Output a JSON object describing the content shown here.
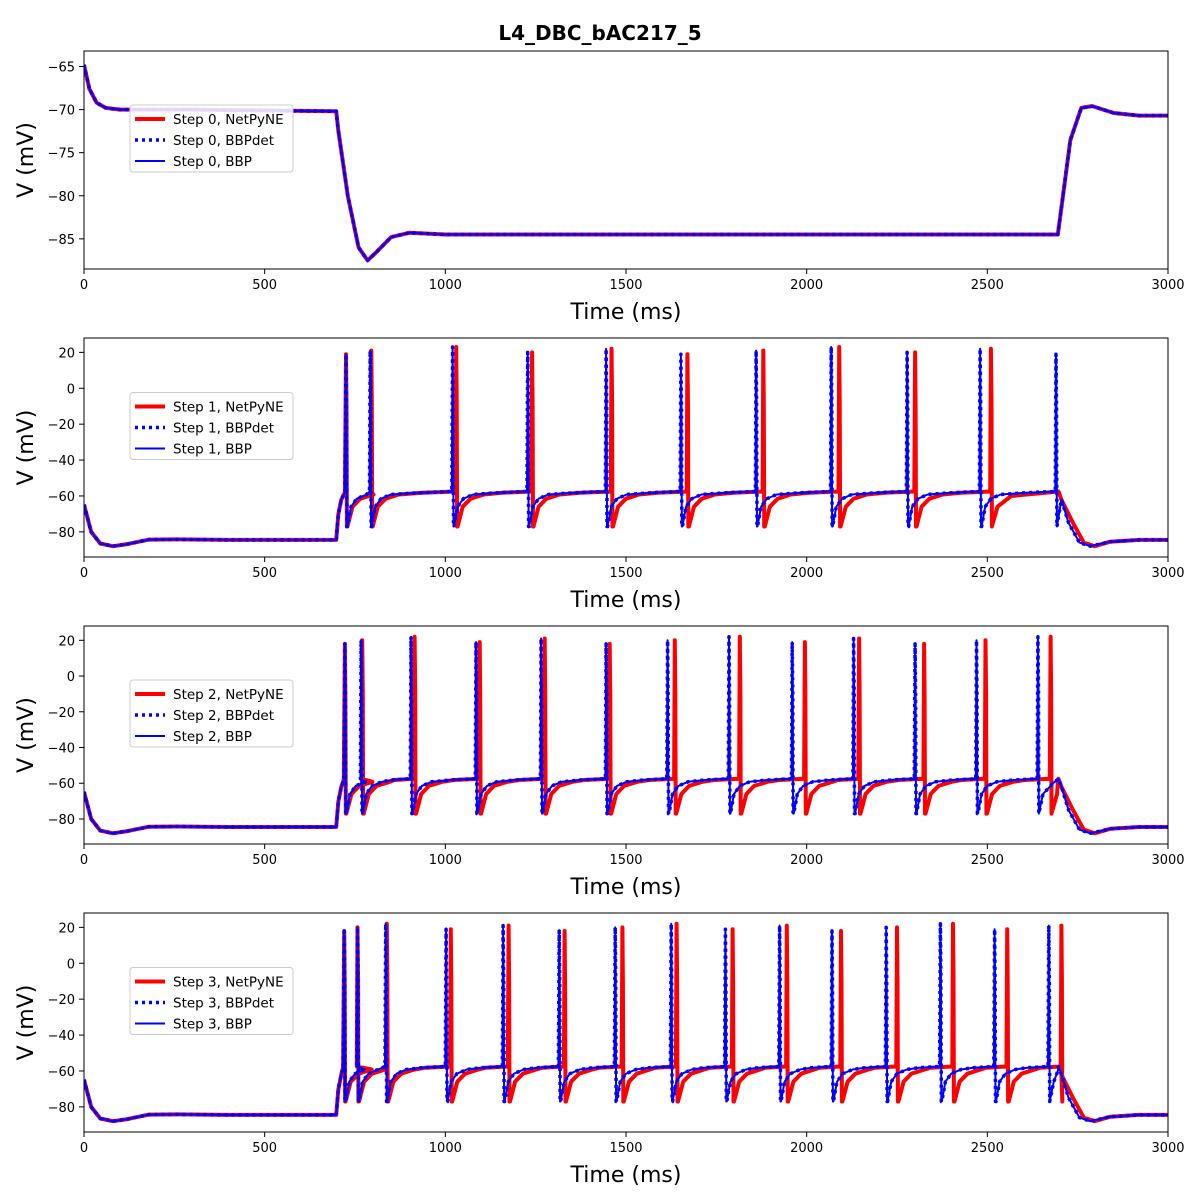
{
  "figure": {
    "title": "L4_DBC_bAC217_5"
  },
  "colors": {
    "netpyne": "#ff0000",
    "bbp": "#0000ff",
    "axes": "#000000",
    "legend_border": "#cccccc"
  },
  "chart_data": [
    {
      "type": "line",
      "step": 0,
      "title": "L4_DBC_bAC217_5",
      "xlabel": "Time (ms)",
      "ylabel": "V (mV)",
      "xlim": [
        0,
        3000
      ],
      "ylim": [
        -88.5,
        -63.2
      ],
      "xticks": [
        0,
        500,
        1000,
        1500,
        2000,
        2500,
        3000
      ],
      "yticks": [
        -85,
        -80,
        -75,
        -70,
        -65
      ],
      "legend_loc": "center-left",
      "legend": [
        "Step 0, NetPyNE",
        "Step 0, BBPdet",
        "Step 0, BBP"
      ],
      "series": [
        {
          "name": "Step 0, NetPyNE",
          "color": "#ff0000",
          "style": "solid-thick",
          "points": [
            [
              0,
              -64.8
            ],
            [
              15,
              -67.6
            ],
            [
              35,
              -69.2
            ],
            [
              60,
              -69.8
            ],
            [
              100,
              -70.0
            ],
            [
              300,
              -70.0
            ],
            [
              500,
              -70.1
            ],
            [
              698,
              -70.2
            ],
            [
              704,
              -72.5
            ],
            [
              730,
              -80.0
            ],
            [
              760,
              -86.0
            ],
            [
              785,
              -87.5
            ],
            [
              810,
              -86.5
            ],
            [
              850,
              -84.8
            ],
            [
              900,
              -84.3
            ],
            [
              1000,
              -84.5
            ],
            [
              2695,
              -84.5
            ],
            [
              2703,
              -82.0
            ],
            [
              2730,
              -73.5
            ],
            [
              2760,
              -69.8
            ],
            [
              2790,
              -69.6
            ],
            [
              2850,
              -70.4
            ],
            [
              2920,
              -70.7
            ],
            [
              3000,
              -70.7
            ]
          ]
        },
        {
          "name": "Step 0, BBPdet",
          "color": "#0000ff",
          "style": "dotted",
          "points": [
            [
              0,
              -64.8
            ],
            [
              15,
              -67.6
            ],
            [
              35,
              -69.2
            ],
            [
              60,
              -69.8
            ],
            [
              100,
              -70.0
            ],
            [
              300,
              -70.0
            ],
            [
              500,
              -70.1
            ],
            [
              698,
              -70.2
            ],
            [
              704,
              -72.5
            ],
            [
              730,
              -80.0
            ],
            [
              760,
              -86.0
            ],
            [
              785,
              -87.5
            ],
            [
              810,
              -86.5
            ],
            [
              850,
              -84.8
            ],
            [
              900,
              -84.3
            ],
            [
              1000,
              -84.5
            ],
            [
              2695,
              -84.5
            ],
            [
              2703,
              -82.0
            ],
            [
              2730,
              -73.5
            ],
            [
              2760,
              -69.8
            ],
            [
              2790,
              -69.6
            ],
            [
              2850,
              -70.4
            ],
            [
              2920,
              -70.7
            ],
            [
              3000,
              -70.7
            ]
          ]
        },
        {
          "name": "Step 0, BBP",
          "color": "#0000ff",
          "style": "solid",
          "points": [
            [
              0,
              -64.8
            ],
            [
              15,
              -67.6
            ],
            [
              35,
              -69.2
            ],
            [
              60,
              -69.8
            ],
            [
              100,
              -70.0
            ],
            [
              300,
              -70.0
            ],
            [
              500,
              -70.1
            ],
            [
              698,
              -70.2
            ],
            [
              704,
              -72.5
            ],
            [
              730,
              -80.0
            ],
            [
              760,
              -86.0
            ],
            [
              785,
              -87.5
            ],
            [
              810,
              -86.5
            ],
            [
              850,
              -84.8
            ],
            [
              900,
              -84.3
            ],
            [
              1000,
              -84.5
            ],
            [
              2695,
              -84.5
            ],
            [
              2703,
              -82.0
            ],
            [
              2730,
              -73.5
            ],
            [
              2760,
              -69.8
            ],
            [
              2790,
              -69.6
            ],
            [
              2850,
              -70.4
            ],
            [
              2920,
              -70.7
            ],
            [
              3000,
              -70.7
            ]
          ]
        }
      ]
    },
    {
      "type": "line",
      "step": 1,
      "xlabel": "Time (ms)",
      "ylabel": "V (mV)",
      "xlim": [
        0,
        3000
      ],
      "ylim": [
        -94,
        28
      ],
      "xticks": [
        0,
        500,
        1000,
        1500,
        2000,
        2500,
        3000
      ],
      "yticks": [
        -80,
        -60,
        -40,
        -20,
        0,
        20
      ],
      "legend_loc": "center-left",
      "legend": [
        "Step 1, NetPyNE",
        "Step 1, BBPdet",
        "Step 1, BBP"
      ],
      "stim": [
        700,
        2700
      ],
      "spikes": {
        "netpyne": [
          725,
          795,
          1030,
          1240,
          1460,
          1670,
          1880,
          2090,
          2300,
          2510
        ],
        "bbp": [
          725,
          792,
          1020,
          1228,
          1445,
          1652,
          1860,
          2068,
          2278,
          2480,
          2690
        ]
      },
      "baseline": {
        "rest_start": -64.8,
        "trough": -88.0,
        "hold": -84.5,
        "plateau": -57.5,
        "ahp": -77,
        "peak": 21
      }
    },
    {
      "type": "line",
      "step": 2,
      "xlabel": "Time (ms)",
      "ylabel": "V (mV)",
      "xlim": [
        0,
        3000
      ],
      "ylim": [
        -94,
        28
      ],
      "xticks": [
        0,
        500,
        1000,
        1500,
        2000,
        2500,
        3000
      ],
      "yticks": [
        -80,
        -60,
        -40,
        -20,
        0,
        20
      ],
      "legend_loc": "center-left",
      "legend": [
        "Step 2, NetPyNE",
        "Step 2, BBPdet",
        "Step 2, BBP"
      ],
      "stim": [
        700,
        2700
      ],
      "spikes": {
        "netpyne": [
          722,
          770,
          915,
          1095,
          1275,
          1455,
          1635,
          1815,
          1995,
          2145,
          2325,
          2495,
          2675
        ],
        "bbp": [
          722,
          767,
          905,
          1085,
          1265,
          1445,
          1615,
          1785,
          1960,
          2130,
          2300,
          2470,
          2640
        ]
      },
      "baseline": {
        "rest_start": -64.8,
        "trough": -88.0,
        "hold": -84.5,
        "plateau": -57.5,
        "ahp": -77,
        "peak": 20
      }
    },
    {
      "type": "line",
      "step": 3,
      "xlabel": "Time (ms)",
      "ylabel": "V (mV)",
      "xlim": [
        0,
        3000
      ],
      "ylim": [
        -94,
        28
      ],
      "xticks": [
        0,
        500,
        1000,
        1500,
        2000,
        2500,
        3000
      ],
      "yticks": [
        -80,
        -60,
        -40,
        -20,
        0,
        20
      ],
      "legend_loc": "center-left",
      "legend": [
        "Step 3, NetPyNE",
        "Step 3, BBPdet",
        "Step 3, BBP"
      ],
      "stim": [
        700,
        2700
      ],
      "spikes": {
        "netpyne": [
          720,
          757,
          838,
          1015,
          1175,
          1330,
          1490,
          1640,
          1795,
          1945,
          2095,
          2250,
          2405,
          2555,
          2705
        ],
        "bbp": [
          720,
          757,
          835,
          1002,
          1160,
          1315,
          1470,
          1625,
          1775,
          1925,
          2070,
          2220,
          2370,
          2520,
          2670
        ]
      },
      "baseline": {
        "rest_start": -64.8,
        "trough": -88.0,
        "hold": -84.5,
        "plateau": -57.5,
        "ahp": -77,
        "peak": 20
      }
    }
  ]
}
